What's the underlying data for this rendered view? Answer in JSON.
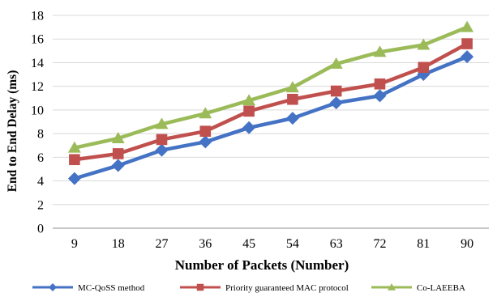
{
  "chart_data": {
    "type": "line",
    "title": "",
    "xlabel": "Number of Packets (Number)",
    "ylabel": "End to End Delay (ms)",
    "categories": [
      "9",
      "18",
      "27",
      "36",
      "45",
      "54",
      "63",
      "72",
      "81",
      "90"
    ],
    "ylim": [
      0,
      18
    ],
    "yticks": [
      0,
      2,
      4,
      6,
      8,
      10,
      12,
      14,
      16,
      18
    ],
    "grid": "horizontal",
    "legend_position": "bottom",
    "series": [
      {
        "name": "MC-QoSS method",
        "values": [
          4.2,
          5.3,
          6.6,
          7.3,
          8.5,
          9.3,
          10.6,
          11.2,
          13.0,
          14.5
        ],
        "color": "#4472c4",
        "marker": "diamond"
      },
      {
        "name": "Priority guaranteed MAC protocol",
        "values": [
          5.8,
          6.3,
          7.5,
          8.2,
          9.9,
          10.9,
          11.6,
          12.2,
          13.6,
          15.6
        ],
        "color": "#c0504d",
        "marker": "square"
      },
      {
        "name": "Co-LAEEBA",
        "values": [
          6.8,
          7.6,
          8.8,
          9.7,
          10.8,
          11.9,
          13.9,
          14.9,
          15.5,
          17.0
        ],
        "color": "#9bbb59",
        "marker": "triangle"
      }
    ]
  }
}
